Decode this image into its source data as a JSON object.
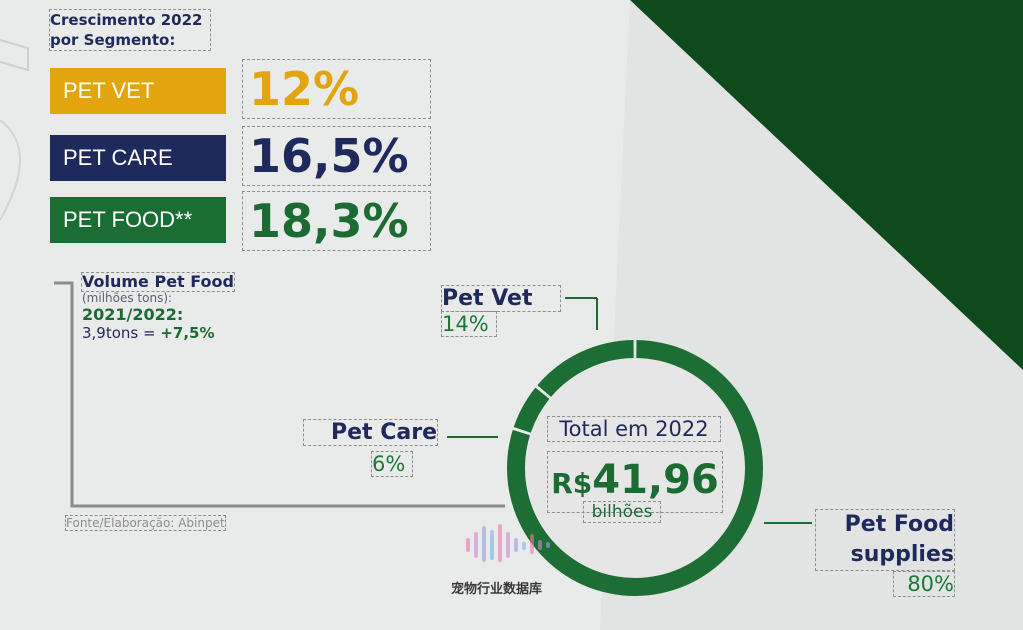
{
  "growth": {
    "title": "Crescimento 2022 por Segmento:",
    "segments": [
      {
        "label": "PET VET",
        "value": "12%",
        "color": "#e3a50e"
      },
      {
        "label": "PET CARE",
        "value": "16,5%",
        "color": "#1f2a5c"
      },
      {
        "label": "PET FOOD**",
        "value": "18,3%",
        "color": "#1a6e33"
      }
    ]
  },
  "volume": {
    "title": "Volume Pet Food",
    "unit": "(milhões tons):",
    "period": "2021/2022:",
    "value": "3,9tons = ",
    "growth": "+7,5%"
  },
  "source": "Fonte/Elaboração: Abinpet",
  "chart_data": {
    "type": "pie",
    "categories": [
      "Pet Vet",
      "Pet Care",
      "Pet Food supplies"
    ],
    "values": [
      14,
      6,
      80
    ],
    "value_labels": [
      "14%",
      "6%",
      "80%"
    ],
    "center_label": "Total em 2022",
    "center_currency": "R$",
    "center_value": "41,96",
    "center_unit": "bilhões",
    "colors": [
      "#1d6e35",
      "#1d6e35",
      "#1d6e35"
    ]
  },
  "watermark": "宠物行业数据库",
  "colors": {
    "dark_green": "#0f4a1c",
    "navy": "#1f2a5c",
    "gold": "#e3a50e",
    "green": "#1b6b33"
  }
}
